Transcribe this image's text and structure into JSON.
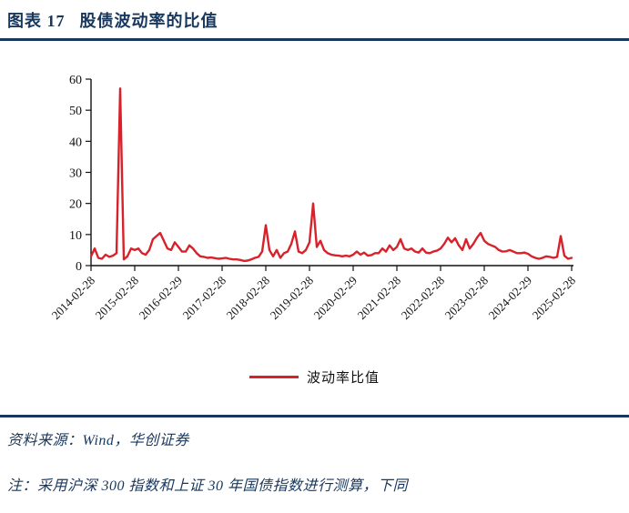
{
  "header": {
    "figure_label": "图表 17",
    "figure_title": "股债波动率的比值",
    "accent_color": "#17375E"
  },
  "chart_data": {
    "type": "line",
    "title": "股债波动率的比值",
    "xlabel": "",
    "ylabel": "",
    "ylim": [
      0,
      60
    ],
    "y_ticks": [
      0,
      10,
      20,
      30,
      40,
      50,
      60
    ],
    "grid": false,
    "legend_position": "bottom",
    "x_tick_every": 12,
    "x_tick_labels": [
      "2014-02-28",
      "2015-02-28",
      "2016-02-29",
      "2017-02-28",
      "2018-02-28",
      "2019-02-28",
      "2020-02-29",
      "2021-02-28",
      "2022-02-28",
      "2023-02-28",
      "2024-02-29",
      "2025-02-28"
    ],
    "x_frequency": "monthly",
    "series": [
      {
        "name": "波动率比值",
        "color": "#D9212A",
        "values": [
          3.0,
          5.5,
          2.5,
          2.2,
          3.5,
          2.8,
          3.2,
          4.0,
          57.0,
          2.0,
          3.0,
          5.5,
          5.0,
          5.5,
          4.0,
          3.5,
          5.0,
          8.5,
          9.5,
          10.5,
          8.0,
          5.5,
          5.0,
          7.5,
          6.0,
          4.5,
          4.5,
          6.5,
          5.5,
          4.0,
          3.0,
          2.8,
          2.5,
          2.6,
          2.4,
          2.2,
          2.3,
          2.5,
          2.2,
          2.0,
          2.0,
          1.8,
          1.5,
          1.6,
          2.0,
          2.5,
          2.8,
          4.5,
          13.0,
          5.0,
          3.0,
          5.0,
          2.5,
          4.0,
          4.5,
          7.0,
          11.0,
          4.5,
          4.0,
          5.0,
          7.5,
          20.0,
          6.0,
          8.0,
          5.0,
          4.0,
          3.5,
          3.3,
          3.2,
          3.0,
          3.2,
          3.0,
          3.5,
          4.5,
          3.5,
          4.2,
          3.2,
          3.4,
          4.0,
          4.0,
          5.5,
          4.5,
          6.5,
          5.0,
          6.0,
          8.5,
          5.5,
          5.0,
          5.5,
          4.5,
          4.2,
          5.5,
          4.2,
          4.0,
          4.5,
          4.8,
          5.5,
          7.0,
          9.0,
          7.5,
          8.8,
          6.5,
          5.0,
          8.5,
          5.5,
          7.0,
          9.0,
          10.5,
          8.0,
          7.0,
          6.5,
          6.0,
          5.0,
          4.5,
          4.6,
          5.0,
          4.5,
          4.0,
          4.0,
          4.2,
          3.8,
          3.0,
          2.5,
          2.2,
          2.5,
          3.0,
          2.8,
          2.5,
          2.8,
          9.5,
          3.2,
          2.2,
          2.5
        ]
      }
    ]
  },
  "legend": {
    "label": "波动率比值",
    "color": "#D9212A"
  },
  "footer": {
    "source_text": "资料来源：Wind，华创证券",
    "note_text": "注：采用沪深 300 指数和上证 30 年国债指数进行测算，下同"
  }
}
